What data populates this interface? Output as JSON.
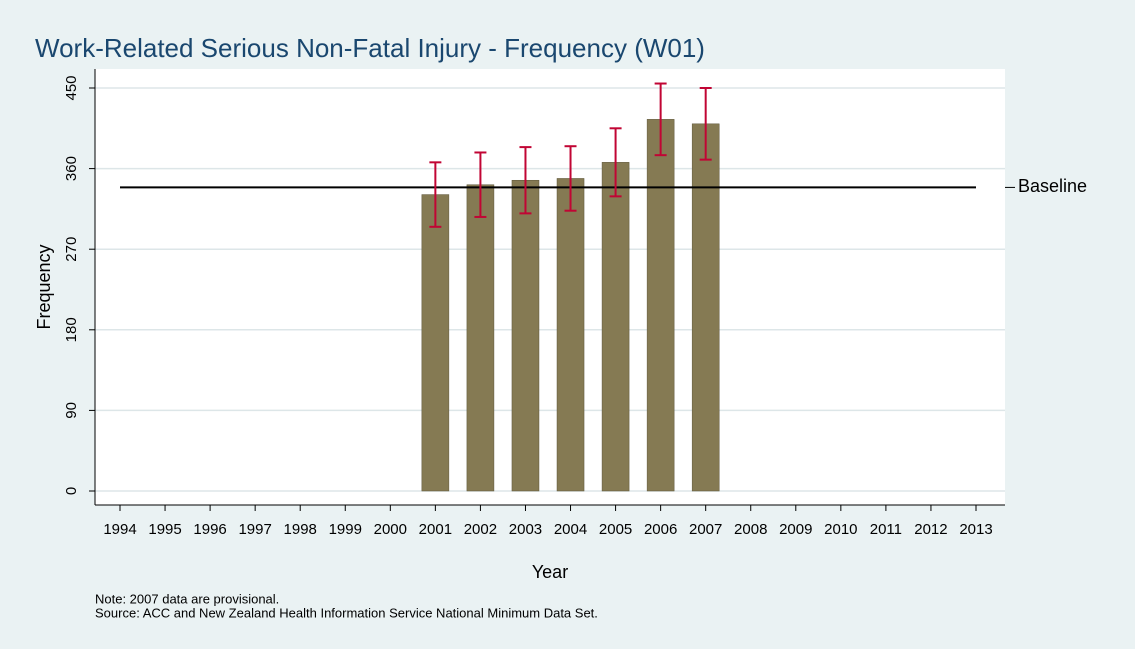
{
  "chart_data": {
    "type": "bar",
    "title": "Work-Related Serious Non-Fatal Injury - Frequency (W01)",
    "x_label": "Year",
    "y_label": "Frequency",
    "categories": [
      "1994",
      "1995",
      "1996",
      "1997",
      "1998",
      "1999",
      "2000",
      "2001",
      "2002",
      "2003",
      "2004",
      "2005",
      "2006",
      "2007",
      "2008",
      "2009",
      "2010",
      "2011",
      "2012",
      "2013"
    ],
    "values": [
      null,
      null,
      null,
      null,
      null,
      null,
      null,
      331,
      342,
      347,
      349,
      367,
      415,
      410,
      null,
      null,
      null,
      null,
      null,
      null
    ],
    "errors": [
      null,
      null,
      null,
      null,
      null,
      null,
      null,
      36,
      36,
      37,
      36,
      38,
      40,
      40,
      null,
      null,
      null,
      null,
      null,
      null
    ],
    "color": "#857a53",
    "error_color": "#c10534",
    "baseline": {
      "value": 339,
      "label": "Baseline"
    },
    "ylim": [
      0,
      450
    ],
    "yticks": [
      0,
      90,
      180,
      270,
      360,
      450
    ],
    "grid": true,
    "notes": [
      "Note: 2007 data are provisional.",
      "Source: ACC and New Zealand Health Information Service National Minimum Data Set."
    ]
  }
}
